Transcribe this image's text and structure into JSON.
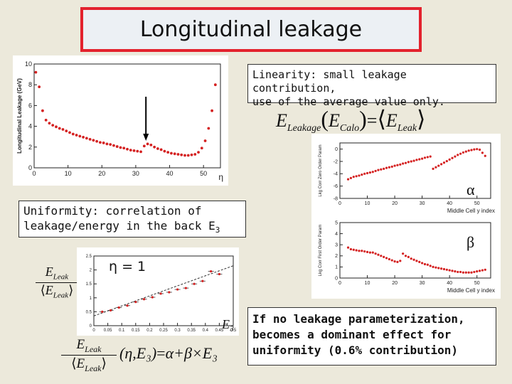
{
  "slide": {
    "title": "Longitudinal leakage",
    "colors": {
      "title_border": "#e3222d",
      "marker": "#d42020",
      "background": "#ece9db"
    }
  },
  "linearity_note": {
    "line1": "Linearity: small leakage contribution,",
    "line2": "use of the average value only."
  },
  "uniformity_note": {
    "line1": "Uniformity: correlation of",
    "line2": "leakage/energy in the back E",
    "line2_sub": "3"
  },
  "conclusion_note": {
    "line1": "If no leakage parameterization,",
    "line2": "becomes a dominant effect for",
    "line3": "uniformity (0.6% contribution)"
  },
  "formulas": {
    "linearity": {
      "lhs": "E",
      "lhs_sub": "Leakage",
      "arg": "E",
      "arg_sub": "Calo",
      "eq": "=",
      "rhs": "E",
      "rhs_sub": "Leak"
    },
    "ratio": {
      "num": "E",
      "num_sub": "Leak",
      "den": "E",
      "den_sub": "Leak"
    },
    "correlation": {
      "num": "E",
      "num_sub": "Leak",
      "den": "E",
      "den_sub": "Leak",
      "args": "(η,E₃)",
      "eq": "=",
      "rhs": "α+β×E₃"
    },
    "eta_label": "η = 1",
    "alpha_label": "α",
    "beta_label": "β",
    "e3_label": "E₃"
  },
  "chart_data": [
    {
      "id": "leakage_vs_eta",
      "type": "scatter",
      "title": "",
      "xlabel": "η",
      "ylabel": "Longitudinal Leakage (GeV)",
      "xlim": [
        0,
        55
      ],
      "ylim": [
        0,
        10
      ],
      "xticks": [
        "0",
        "10",
        "20",
        "30",
        "40",
        "50"
      ],
      "yticks": [
        "0",
        "2",
        "4",
        "6",
        "8",
        "10"
      ],
      "x": [
        0.5,
        1.5,
        2.5,
        3.5,
        4.5,
        5.5,
        6.5,
        7.5,
        8.5,
        9.5,
        10.5,
        11.5,
        12.5,
        13.5,
        14.5,
        15.5,
        16.5,
        17.5,
        18.5,
        19.5,
        20.5,
        21.5,
        22.5,
        23.5,
        24.5,
        25.5,
        26.5,
        27.5,
        28.5,
        29.5,
        30.5,
        31.5,
        32.5,
        33.5,
        34.5,
        35.5,
        36.5,
        37.5,
        38.5,
        39.5,
        40.5,
        41.5,
        42.5,
        43.5,
        44.5,
        45.5,
        46.5,
        47.5,
        48.5,
        49.5,
        50.5,
        51.5,
        52.5,
        53.5
      ],
      "values": [
        9.2,
        7.8,
        5.5,
        4.6,
        4.3,
        4.1,
        3.95,
        3.8,
        3.7,
        3.55,
        3.4,
        3.25,
        3.15,
        3.05,
        2.95,
        2.85,
        2.75,
        2.65,
        2.55,
        2.45,
        2.4,
        2.3,
        2.25,
        2.15,
        2.05,
        1.95,
        1.9,
        1.8,
        1.7,
        1.65,
        1.6,
        1.55,
        2.1,
        2.3,
        2.2,
        2.0,
        1.85,
        1.75,
        1.6,
        1.5,
        1.4,
        1.35,
        1.3,
        1.25,
        1.2,
        1.2,
        1.25,
        1.3,
        1.5,
        1.9,
        2.6,
        3.8,
        5.5,
        8.0
      ],
      "annotations": [
        "arrow at η≈33"
      ]
    },
    {
      "id": "alpha_vs_middle",
      "type": "scatter",
      "xlabel": "Middle Cell y index",
      "ylabel": "Lkg Corr Zero Order Param",
      "xlim": [
        0,
        55
      ],
      "ylim": [
        -8,
        1
      ],
      "xticks": [
        "0",
        "10",
        "20",
        "30",
        "40",
        "50"
      ],
      "yticks": [
        "-8",
        "-6",
        "-4",
        "-2",
        "0"
      ],
      "x": [
        3,
        4,
        5,
        6,
        7,
        8,
        9,
        10,
        11,
        12,
        13,
        14,
        15,
        16,
        17,
        18,
        19,
        20,
        21,
        22,
        23,
        24,
        25,
        26,
        27,
        28,
        29,
        30,
        31,
        32,
        33,
        34,
        35,
        36,
        37,
        38,
        39,
        40,
        41,
        42,
        43,
        44,
        45,
        46,
        47,
        48,
        49,
        50,
        51,
        52,
        53
      ],
      "values": [
        -4.9,
        -4.7,
        -4.5,
        -4.4,
        -4.3,
        -4.15,
        -4.0,
        -3.9,
        -3.8,
        -3.7,
        -3.55,
        -3.4,
        -3.3,
        -3.2,
        -3.05,
        -2.95,
        -2.85,
        -2.7,
        -2.6,
        -2.5,
        -2.35,
        -2.25,
        -2.1,
        -2.0,
        -1.9,
        -1.75,
        -1.65,
        -1.55,
        -1.4,
        -1.3,
        -1.2,
        -3.2,
        -2.95,
        -2.7,
        -2.45,
        -2.2,
        -1.95,
        -1.7,
        -1.45,
        -1.2,
        -0.95,
        -0.75,
        -0.55,
        -0.4,
        -0.25,
        -0.15,
        -0.05,
        0.0,
        -0.1,
        -0.6,
        -1.1
      ]
    },
    {
      "id": "beta_vs_middle",
      "type": "scatter",
      "xlabel": "Middle Cell y index",
      "ylabel": "Lkg Corr First Order Param",
      "xlim": [
        0,
        55
      ],
      "ylim": [
        0,
        5
      ],
      "xticks": [
        "0",
        "10",
        "20",
        "30",
        "40",
        "50"
      ],
      "yticks": [
        "0",
        "1",
        "2",
        "3",
        "4",
        "5"
      ],
      "x": [
        3,
        4,
        5,
        6,
        7,
        8,
        9,
        10,
        11,
        12,
        13,
        14,
        15,
        16,
        17,
        18,
        19,
        20,
        21,
        22,
        23,
        24,
        25,
        26,
        27,
        28,
        29,
        30,
        31,
        32,
        33,
        34,
        35,
        36,
        37,
        38,
        39,
        40,
        41,
        42,
        43,
        44,
        45,
        46,
        47,
        48,
        49,
        50,
        51,
        52,
        53
      ],
      "values": [
        2.75,
        2.6,
        2.55,
        2.5,
        2.45,
        2.45,
        2.4,
        2.35,
        2.3,
        2.3,
        2.2,
        2.1,
        2.0,
        1.9,
        1.8,
        1.7,
        1.6,
        1.5,
        1.45,
        1.55,
        2.2,
        2.0,
        1.9,
        1.75,
        1.65,
        1.55,
        1.45,
        1.35,
        1.25,
        1.2,
        1.1,
        1.0,
        0.95,
        0.9,
        0.85,
        0.8,
        0.75,
        0.7,
        0.65,
        0.6,
        0.55,
        0.55,
        0.5,
        0.5,
        0.5,
        0.5,
        0.55,
        0.6,
        0.65,
        0.7,
        0.75
      ]
    },
    {
      "id": "ratio_vs_e3",
      "type": "scatter",
      "xlabel": "E₃",
      "ylabel": "E_Leak/<E_Leak>",
      "xlim": [
        0,
        0.5
      ],
      "ylim": [
        0,
        2.5
      ],
      "xticks": [
        "0",
        "0.05",
        "0.1",
        "0.15",
        "0.2",
        "0.25",
        "0.3",
        "0.35",
        "0.4",
        "0.45",
        "0.5"
      ],
      "yticks": [
        "0",
        "0.5",
        "1",
        "1.5",
        "2",
        "2.5"
      ],
      "x": [
        0.03,
        0.06,
        0.09,
        0.12,
        0.15,
        0.18,
        0.21,
        0.24,
        0.27,
        0.3,
        0.33,
        0.36,
        0.39,
        0.42,
        0.45
      ],
      "values": [
        0.5,
        0.55,
        0.65,
        0.72,
        0.85,
        0.95,
        1.02,
        1.15,
        1.2,
        1.3,
        1.35,
        1.5,
        1.6,
        1.95,
        1.85
      ],
      "fit": [
        0.35,
        3.6
      ]
    }
  ]
}
